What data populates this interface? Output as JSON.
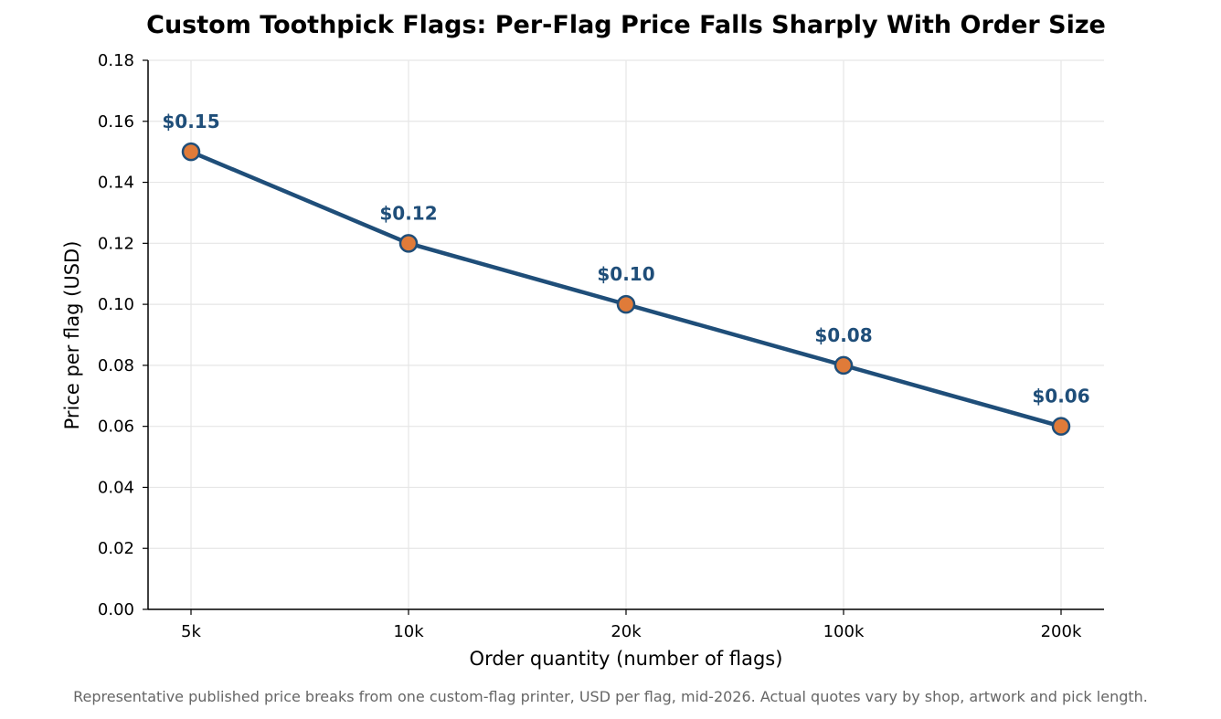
{
  "chart_data": {
    "type": "line",
    "title": "Custom Toothpick Flags: Per-Flag Price Falls Sharply With Order Size",
    "xlabel": "Order quantity (number of flags)",
    "ylabel": "Price per flag (USD)",
    "categories": [
      "5k",
      "10k",
      "20k",
      "100k",
      "200k"
    ],
    "series": [
      {
        "values": [
          0.15,
          0.12,
          0.1,
          0.08,
          0.06
        ]
      }
    ],
    "data_labels": [
      "$0.15",
      "$0.12",
      "$0.10",
      "$0.08",
      "$0.06"
    ],
    "ylim": [
      0,
      0.18
    ],
    "yticks": [
      "0.00",
      "0.02",
      "0.04",
      "0.06",
      "0.08",
      "0.10",
      "0.12",
      "0.14",
      "0.16",
      "0.18"
    ],
    "grid": true,
    "legend": "none",
    "caption": "Representative published price breaks from one custom-flag printer, USD per flag, mid-2026. Actual quotes vary by shop, artwork and pick length.",
    "colors": {
      "line": "#1f4e79",
      "marker_fill": "#e07b39",
      "marker_edge": "#1f4e79",
      "data_label": "#1f4e79",
      "grid": "#e6e6e6",
      "caption": "#666666"
    }
  }
}
